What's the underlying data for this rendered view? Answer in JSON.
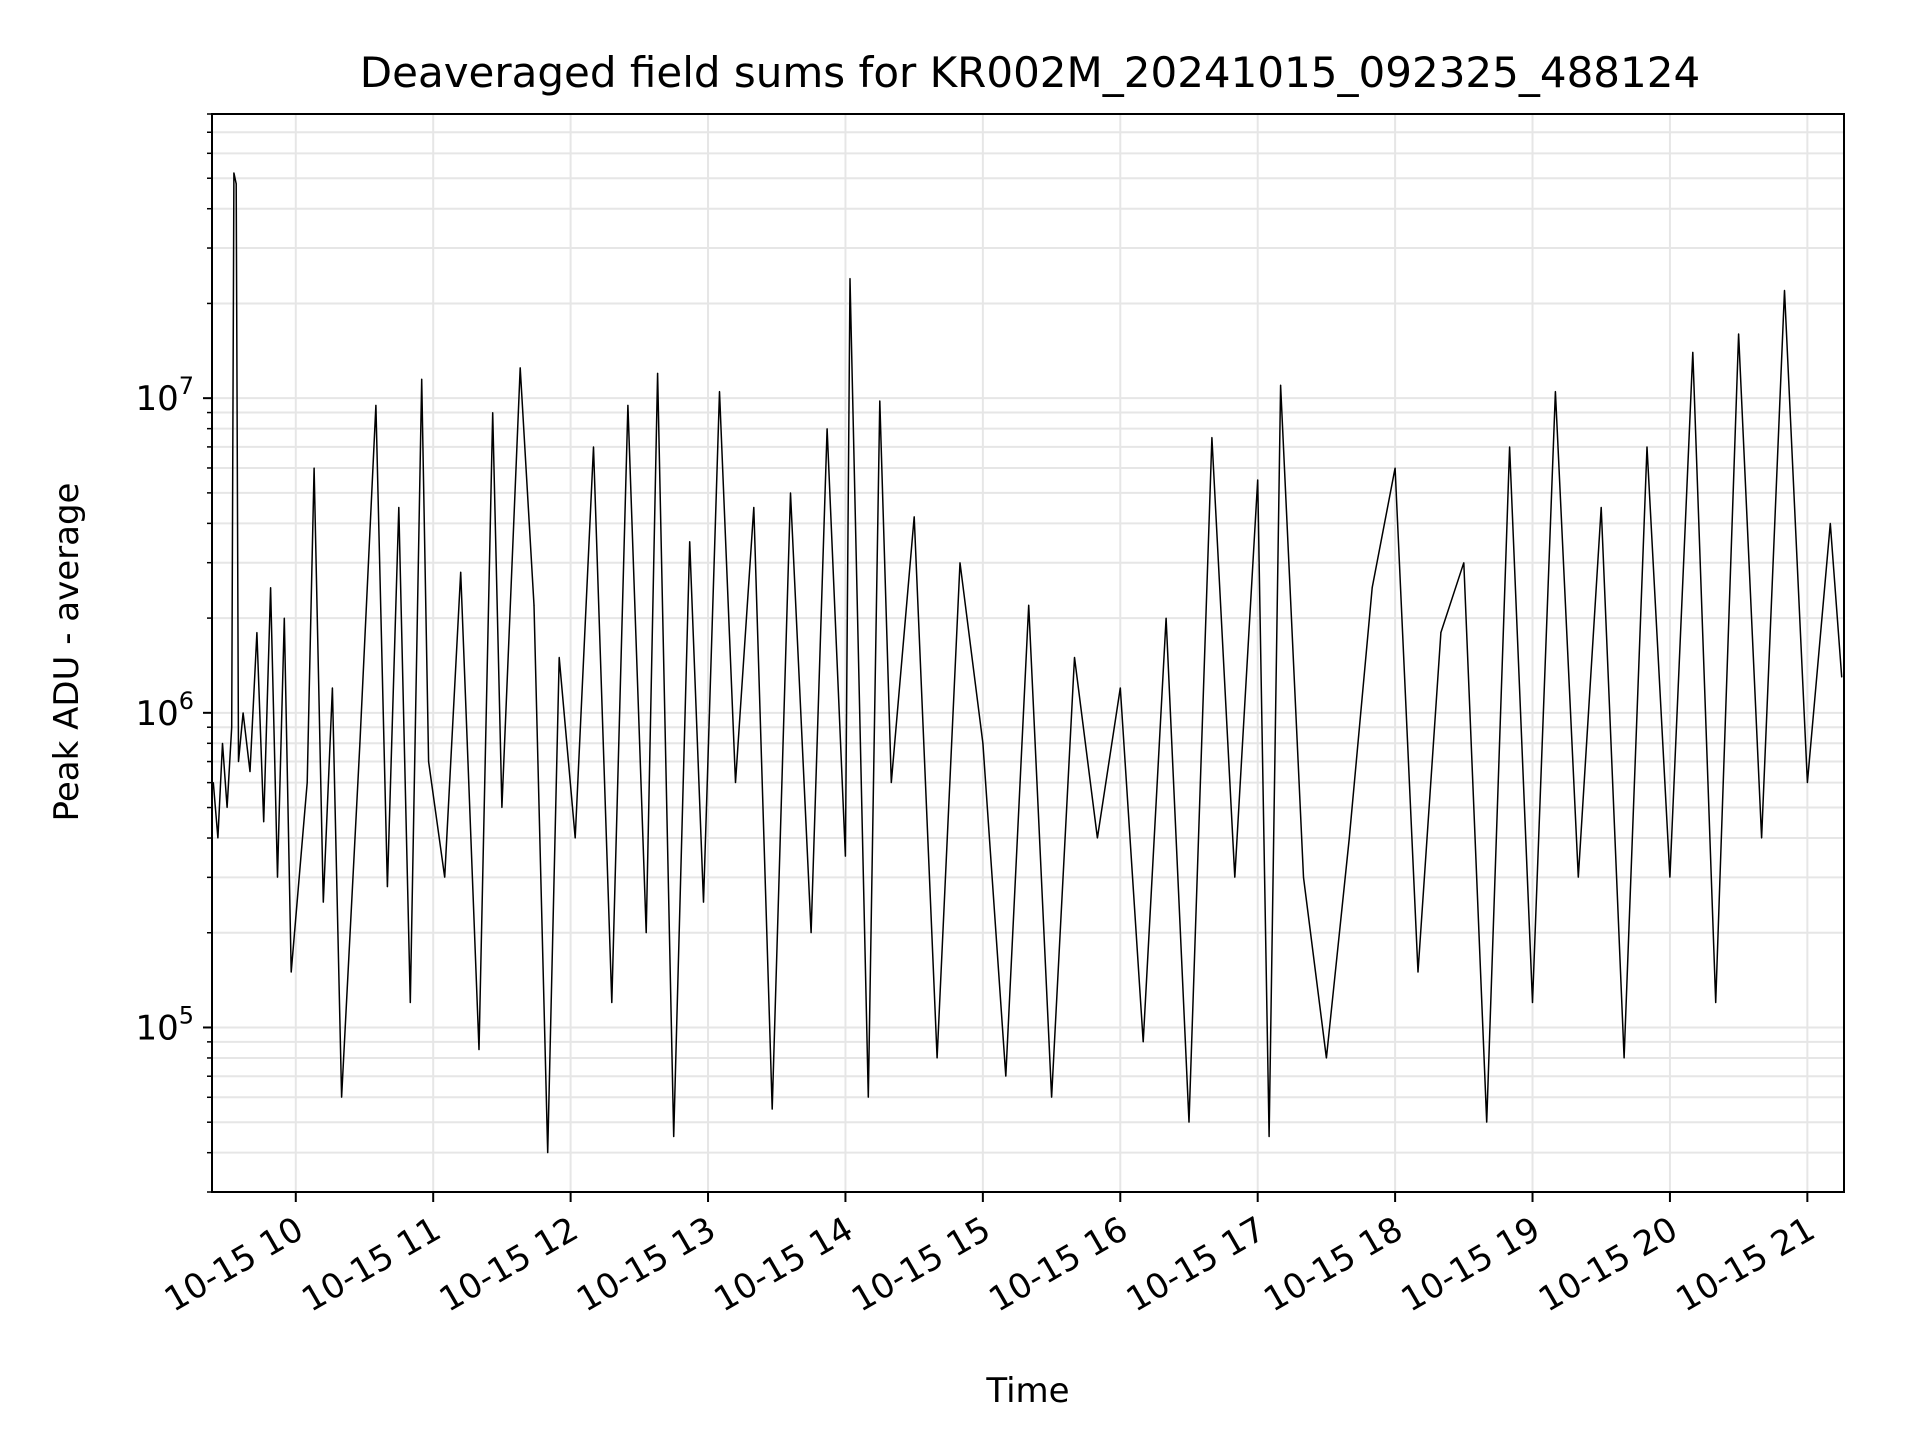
{
  "chart_data": {
    "type": "line",
    "title": "Deaveraged field sums for KR002M_20241015_092325_488124",
    "xlabel": "Time",
    "ylabel": "Peak ADU - average",
    "yscale": "log",
    "ylim": [
      30000,
      80000000
    ],
    "xlim": [
      "2024-10-15 09:23:25",
      "2024-10-15 21:16:00"
    ],
    "grid": "on",
    "grid_minor": "on",
    "line_color": "#000000",
    "grid_color": "#e6e6e6",
    "x_ticks": [
      {
        "value": "2024-10-15 10:00",
        "label": "10-15 10"
      },
      {
        "value": "2024-10-15 11:00",
        "label": "10-15 11"
      },
      {
        "value": "2024-10-15 12:00",
        "label": "10-15 12"
      },
      {
        "value": "2024-10-15 13:00",
        "label": "10-15 13"
      },
      {
        "value": "2024-10-15 14:00",
        "label": "10-15 14"
      },
      {
        "value": "2024-10-15 15:00",
        "label": "10-15 15"
      },
      {
        "value": "2024-10-15 16:00",
        "label": "10-15 16"
      },
      {
        "value": "2024-10-15 17:00",
        "label": "10-15 17"
      },
      {
        "value": "2024-10-15 18:00",
        "label": "10-15 18"
      },
      {
        "value": "2024-10-15 19:00",
        "label": "10-15 19"
      },
      {
        "value": "2024-10-15 20:00",
        "label": "10-15 20"
      },
      {
        "value": "2024-10-15 21:00",
        "label": "10-15 21"
      }
    ],
    "y_ticks": [
      {
        "value": 100000,
        "base": "10",
        "exp": "5"
      },
      {
        "value": 1000000,
        "base": "10",
        "exp": "6"
      },
      {
        "value": 10000000,
        "base": "10",
        "exp": "7"
      }
    ],
    "series": [
      {
        "x": [
          "2024-10-15 09:24",
          "2024-10-15 09:26",
          "2024-10-15 09:28",
          "2024-10-15 09:30",
          "2024-10-15 09:32",
          "2024-10-15 09:33",
          "2024-10-15 09:34",
          "2024-10-15 09:35",
          "2024-10-15 09:37",
          "2024-10-15 09:40",
          "2024-10-15 09:43",
          "2024-10-15 09:46",
          "2024-10-15 09:49",
          "2024-10-15 09:52",
          "2024-10-15 09:55",
          "2024-10-15 09:58",
          "2024-10-15 10:05",
          "2024-10-15 10:08",
          "2024-10-15 10:12",
          "2024-10-15 10:16",
          "2024-10-15 10:20",
          "2024-10-15 10:28",
          "2024-10-15 10:35",
          "2024-10-15 10:40",
          "2024-10-15 10:45",
          "2024-10-15 10:50",
          "2024-10-15 10:55",
          "2024-10-15 10:58",
          "2024-10-15 11:05",
          "2024-10-15 11:12",
          "2024-10-15 11:20",
          "2024-10-15 11:26",
          "2024-10-15 11:30",
          "2024-10-15 11:38",
          "2024-10-15 11:44",
          "2024-10-15 11:50",
          "2024-10-15 11:55",
          "2024-10-15 12:02",
          "2024-10-15 12:10",
          "2024-10-15 12:18",
          "2024-10-15 12:25",
          "2024-10-15 12:33",
          "2024-10-15 12:38",
          "2024-10-15 12:45",
          "2024-10-15 12:52",
          "2024-10-15 12:58",
          "2024-10-15 13:05",
          "2024-10-15 13:12",
          "2024-10-15 13:20",
          "2024-10-15 13:28",
          "2024-10-15 13:36",
          "2024-10-15 13:45",
          "2024-10-15 13:52",
          "2024-10-15 14:00",
          "2024-10-15 14:02",
          "2024-10-15 14:10",
          "2024-10-15 14:15",
          "2024-10-15 14:20",
          "2024-10-15 14:30",
          "2024-10-15 14:40",
          "2024-10-15 14:50",
          "2024-10-15 15:00",
          "2024-10-15 15:10",
          "2024-10-15 15:20",
          "2024-10-15 15:30",
          "2024-10-15 15:40",
          "2024-10-15 15:50",
          "2024-10-15 16:00",
          "2024-10-15 16:10",
          "2024-10-15 16:20",
          "2024-10-15 16:30",
          "2024-10-15 16:40",
          "2024-10-15 16:50",
          "2024-10-15 17:00",
          "2024-10-15 17:05",
          "2024-10-15 17:10",
          "2024-10-15 17:20",
          "2024-10-15 17:30",
          "2024-10-15 17:40",
          "2024-10-15 17:50",
          "2024-10-15 18:00",
          "2024-10-15 18:10",
          "2024-10-15 18:20",
          "2024-10-15 18:30",
          "2024-10-15 18:40",
          "2024-10-15 18:50",
          "2024-10-15 19:00",
          "2024-10-15 19:10",
          "2024-10-15 19:20",
          "2024-10-15 19:30",
          "2024-10-15 19:40",
          "2024-10-15 19:50",
          "2024-10-15 20:00",
          "2024-10-15 20:10",
          "2024-10-15 20:20",
          "2024-10-15 20:30",
          "2024-10-15 20:40",
          "2024-10-15 20:50",
          "2024-10-15 21:00",
          "2024-10-15 21:10",
          "2024-10-15 21:15"
        ],
        "y": [
          600000,
          400000,
          800000,
          500000,
          900000,
          52000000,
          48000000,
          700000,
          1000000,
          650000,
          1800000,
          450000,
          2500000,
          300000,
          2000000,
          150000,
          600000,
          6000000,
          250000,
          1200000,
          60000,
          800000,
          9500000,
          280000,
          4500000,
          120000,
          11500000,
          700000,
          300000,
          2800000,
          85000,
          9000000,
          500000,
          12500000,
          2200000,
          40000,
          1500000,
          400000,
          7000000,
          120000,
          9500000,
          200000,
          12000000,
          45000,
          3500000,
          250000,
          10500000,
          600000,
          4500000,
          55000,
          5000000,
          200000,
          8000000,
          350000,
          24000000,
          60000,
          9800000,
          600000,
          4200000,
          80000,
          3000000,
          800000,
          70000,
          2200000,
          60000,
          1500000,
          400000,
          1200000,
          90000,
          2000000,
          50000,
          7500000,
          300000,
          5500000,
          45000,
          11000000,
          300000,
          80000,
          400000,
          2500000,
          6000000,
          150000,
          1800000,
          3000000,
          50000,
          7000000,
          120000,
          10500000,
          300000,
          4500000,
          80000,
          7000000,
          300000,
          14000000,
          120000,
          16000000,
          400000,
          22000000,
          600000,
          4000000,
          1300000
        ]
      }
    ]
  }
}
